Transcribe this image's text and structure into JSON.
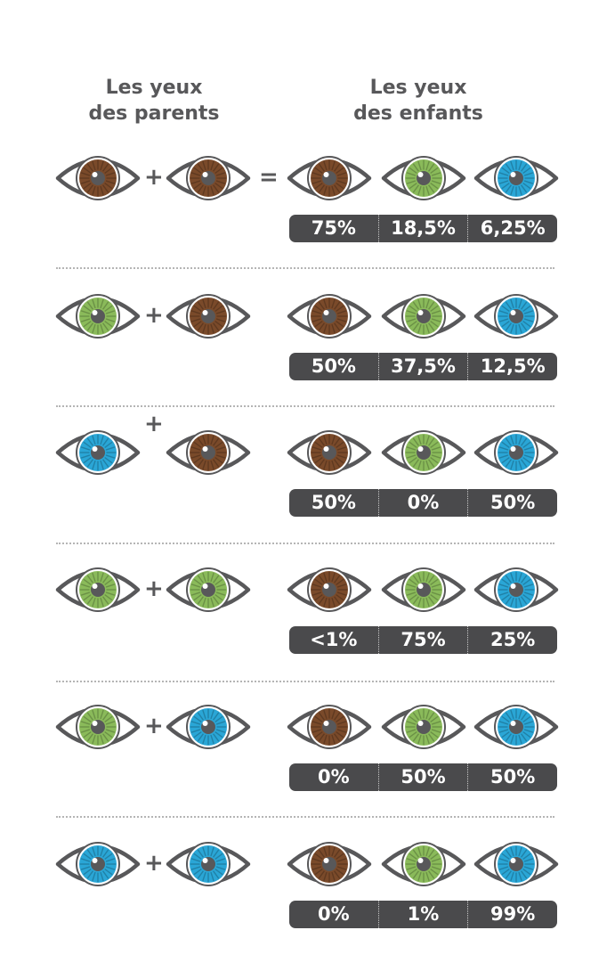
{
  "header": {
    "parents_line1": "Les yeux",
    "parents_line2": "des parents",
    "children_line1": "Les yeux",
    "children_line2": "des enfants"
  },
  "colors": {
    "brown": "#7a4a2a",
    "green": "#8aba5a",
    "blue": "#2aa6d6",
    "outline": "#58585a",
    "badge": "#4a4a4c"
  },
  "plus_sign": "+",
  "equals_sign": "=",
  "child_eye_colors": [
    "brown",
    "green",
    "blue"
  ],
  "rows": [
    {
      "parent1": "brown",
      "parent2": "brown",
      "percentages": [
        "75%",
        "18,5%",
        "6,25%"
      ]
    },
    {
      "parent1": "green",
      "parent2": "brown",
      "percentages": [
        "50%",
        "37,5%",
        "12,5%"
      ]
    },
    {
      "parent1": "blue",
      "parent2": "brown",
      "percentages": [
        "50%",
        "0%",
        "50%"
      ]
    },
    {
      "parent1": "green",
      "parent2": "green",
      "percentages": [
        "<1%",
        "75%",
        "25%"
      ]
    },
    {
      "parent1": "green",
      "parent2": "blue",
      "percentages": [
        "0%",
        "50%",
        "50%"
      ]
    },
    {
      "parent1": "blue",
      "parent2": "blue",
      "percentages": [
        "0%",
        "1%",
        "99%"
      ]
    }
  ]
}
